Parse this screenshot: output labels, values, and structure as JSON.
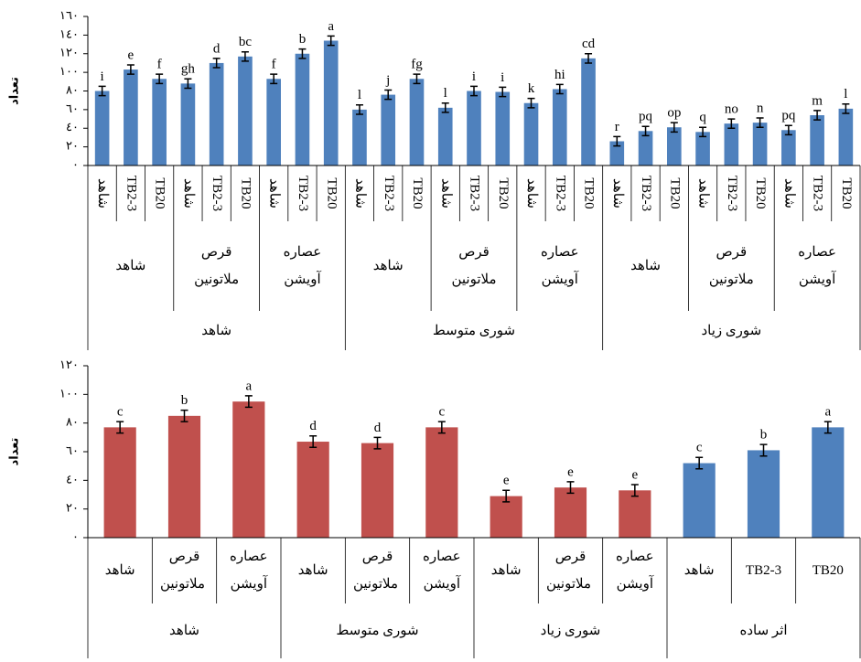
{
  "chart_data": [
    {
      "type": "bar",
      "y_label": "تعداد",
      "color": "#4f81bd",
      "ylim": [
        0,
        160
      ],
      "yticks": [
        {
          "value": 0,
          "label": "٠"
        },
        {
          "value": 20,
          "label": "٢٠"
        },
        {
          "value": 40,
          "label": "٤٠"
        },
        {
          "value": 60,
          "label": "٦٠"
        },
        {
          "value": 80,
          "label": "٨٠"
        },
        {
          "value": 100,
          "label": "١٠٠"
        },
        {
          "value": 120,
          "label": "١٢٠"
        },
        {
          "value": 140,
          "label": "١٤٠"
        },
        {
          "value": 160,
          "label": "١٦٠"
        }
      ],
      "categories": [
        "شاهد",
        "TB2-3",
        "TB20",
        "شاهد",
        "TB2-3",
        "TB20",
        "شاهد",
        "TB2-3",
        "TB20",
        "شاهد",
        "TB2-3",
        "TB20",
        "شاهد",
        "TB2-3",
        "TB20",
        "شاهد",
        "TB2-3",
        "TB20",
        "شاهد",
        "TB2-3",
        "TB20",
        "شاهد",
        "TB2-3",
        "TB20",
        "شاهد",
        "TB2-3",
        "TB20"
      ],
      "category_levels": [
        [
          "شاهد",
          "قرص ملاتونین",
          "عصاره آویشن",
          "شاهد",
          "قرص ملاتونین",
          "عصاره آویشن",
          "شاهد",
          "قرص ملاتونین",
          "عصاره آویشن"
        ],
        [
          "شاهد",
          "شوری متوسط",
          "شوری زیاد"
        ]
      ],
      "values": [
        80,
        103,
        93,
        88,
        110,
        117,
        93,
        120,
        134,
        60,
        76,
        93,
        62,
        80,
        79,
        67,
        82,
        115,
        26,
        37,
        41,
        36,
        45,
        46,
        38,
        54,
        61
      ],
      "errors": [
        5,
        5,
        5,
        5,
        5,
        5,
        5,
        5,
        5,
        5,
        5,
        5,
        5,
        5,
        5,
        5,
        5,
        5,
        5,
        5,
        5,
        5,
        5,
        5,
        5,
        5,
        5
      ],
      "letters": [
        "i",
        "e",
        "f",
        "gh",
        "d",
        "bc",
        "f",
        "b",
        "a",
        "l",
        "j",
        "fg",
        "l",
        "i",
        "i",
        "k",
        "hi",
        "cd",
        "r",
        "pq",
        "op",
        "q",
        "no",
        "n",
        "pq",
        "m",
        "l"
      ]
    },
    {
      "type": "bar",
      "y_label": "تعداد",
      "colors": [
        "#c0504d",
        "#c0504d",
        "#c0504d",
        "#c0504d",
        "#c0504d",
        "#c0504d",
        "#c0504d",
        "#c0504d",
        "#c0504d",
        "#4f81bd",
        "#4f81bd",
        "#4f81bd"
      ],
      "ylim": [
        0,
        120
      ],
      "yticks": [
        {
          "value": 0,
          "label": "٠"
        },
        {
          "value": 20,
          "label": "٢٠"
        },
        {
          "value": 40,
          "label": "٤٠"
        },
        {
          "value": 60,
          "label": "٦٠"
        },
        {
          "value": 80,
          "label": "٨٠"
        },
        {
          "value": 100,
          "label": "١٠٠"
        },
        {
          "value": 120,
          "label": "١٢٠"
        }
      ],
      "categories": [
        "شاهد",
        "قرص ملاتونین",
        "عصاره آویشن",
        "شاهد",
        "قرص ملاتونین",
        "عصاره آویشن",
        "شاهد",
        "قرص ملاتونین",
        "عصاره آویشن",
        "شاهد",
        "TB2-3",
        "TB20"
      ],
      "category_levels": [
        [
          "شاهد",
          "شوری متوسط",
          "شوری زیاد",
          "اثر ساده"
        ]
      ],
      "values": [
        77,
        85,
        95,
        67,
        66,
        77,
        29,
        35,
        33,
        52,
        61,
        77
      ],
      "errors": [
        4,
        4,
        4,
        4,
        4,
        4,
        4,
        4,
        4,
        4,
        4,
        4
      ],
      "letters": [
        "c",
        "b",
        "a",
        "d",
        "d",
        "c",
        "e",
        "e",
        "e",
        "c",
        "b",
        "a"
      ]
    }
  ]
}
